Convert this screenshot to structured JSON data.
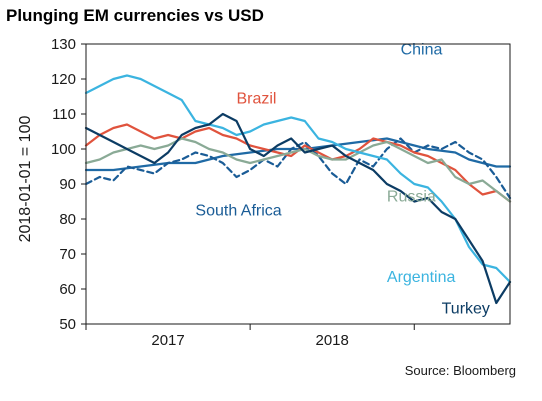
{
  "chart_data": {
    "type": "line",
    "title": "Plunging EM currencies vs USD",
    "ylabel": "2018-01-01 = 100",
    "xlabel": "",
    "ylim": [
      50,
      130
    ],
    "yticks": [
      50,
      60,
      70,
      80,
      90,
      100,
      110,
      120,
      130
    ],
    "xlim": [
      "2016-01",
      "2018-08"
    ],
    "xticks": [
      {
        "date": "2016-01",
        "label": ""
      },
      {
        "date": "2017-01",
        "label": ""
      },
      {
        "date": "2018-01",
        "label": ""
      }
    ],
    "xperiods": [
      {
        "label": "2017",
        "from": "2016-01",
        "to": "2017-01"
      },
      {
        "label": "2018",
        "from": "2017-01",
        "to": "2018-01"
      }
    ],
    "source": "Source: Bloomberg",
    "grid": false,
    "legend": "inline labels",
    "series": [
      {
        "name": "China",
        "color": "#1f6aa5",
        "dash": false,
        "label_at": [
          "2017-12",
          127
        ],
        "x": [
          "2016-01",
          "2016-03",
          "2016-05",
          "2016-07",
          "2016-09",
          "2016-11",
          "2017-01",
          "2017-03",
          "2017-05",
          "2017-07",
          "2017-09",
          "2017-11",
          "2018-01",
          "2018-02",
          "2018-04",
          "2018-05",
          "2018-06",
          "2018-07",
          "2018-08"
        ],
        "y": [
          94,
          94,
          95,
          96,
          96,
          98,
          99,
          100,
          100,
          101,
          102,
          103,
          101,
          100,
          99,
          97,
          96,
          95,
          95
        ]
      },
      {
        "name": "South Africa",
        "color": "#1a5c96",
        "dash": true,
        "label_at": [
          "2016-09",
          81
        ],
        "x": [
          "2016-01",
          "2016-02",
          "2016-03",
          "2016-04",
          "2016-05",
          "2016-06",
          "2016-07",
          "2016-08",
          "2016-09",
          "2016-10",
          "2016-11",
          "2016-12",
          "2017-01",
          "2017-02",
          "2017-03",
          "2017-04",
          "2017-05",
          "2017-06",
          "2017-07",
          "2017-08",
          "2017-09",
          "2017-10",
          "2017-11",
          "2017-12",
          "2018-01",
          "2018-02",
          "2018-03",
          "2018-04",
          "2018-05",
          "2018-06",
          "2018-07",
          "2018-08"
        ],
        "y": [
          90,
          92,
          91,
          95,
          94,
          93,
          96,
          97,
          99,
          98,
          96,
          92,
          94,
          97,
          95,
          100,
          102,
          98,
          93,
          90,
          97,
          95,
          100,
          103,
          99,
          101,
          100,
          102,
          99,
          97,
          92,
          86
        ]
      },
      {
        "name": "Brazil",
        "color": "#e0533d",
        "dash": false,
        "label_at": [
          "2016-12",
          113
        ],
        "x": [
          "2016-01",
          "2016-02",
          "2016-03",
          "2016-04",
          "2016-05",
          "2016-06",
          "2016-07",
          "2016-08",
          "2016-09",
          "2016-10",
          "2016-11",
          "2016-12",
          "2017-01",
          "2017-02",
          "2017-03",
          "2017-04",
          "2017-05",
          "2017-06",
          "2017-07",
          "2017-08",
          "2017-09",
          "2017-10",
          "2017-11",
          "2017-12",
          "2018-01",
          "2018-02",
          "2018-03",
          "2018-04",
          "2018-05",
          "2018-06",
          "2018-07",
          "2018-08"
        ],
        "y": [
          101,
          104,
          106,
          107,
          105,
          103,
          104,
          103,
          105,
          106,
          104,
          103,
          101,
          100,
          99,
          98,
          101,
          99,
          97,
          98,
          100,
          103,
          102,
          101,
          99,
          98,
          96,
          94,
          90,
          87,
          88,
          85
        ]
      },
      {
        "name": "Russia",
        "color": "#8aaa96",
        "dash": false,
        "label_at": [
          "2017-11",
          85
        ],
        "x": [
          "2016-01",
          "2016-02",
          "2016-03",
          "2016-04",
          "2016-05",
          "2016-06",
          "2016-07",
          "2016-08",
          "2016-09",
          "2016-10",
          "2016-11",
          "2016-12",
          "2017-01",
          "2017-02",
          "2017-03",
          "2017-04",
          "2017-05",
          "2017-06",
          "2017-07",
          "2017-08",
          "2017-09",
          "2017-10",
          "2017-11",
          "2017-12",
          "2018-01",
          "2018-02",
          "2018-03",
          "2018-04",
          "2018-05",
          "2018-06",
          "2018-07",
          "2018-08"
        ],
        "y": [
          96,
          97,
          99,
          100,
          101,
          100,
          101,
          103,
          102,
          100,
          99,
          97,
          96,
          97,
          98,
          99,
          100,
          98,
          97,
          97,
          99,
          101,
          102,
          100,
          98,
          96,
          97,
          92,
          90,
          91,
          88,
          85
        ]
      },
      {
        "name": "Argentina",
        "color": "#3bb4e0",
        "dash": false,
        "label_at": [
          "2017-11",
          62
        ],
        "x": [
          "2016-01",
          "2016-02",
          "2016-03",
          "2016-04",
          "2016-05",
          "2016-06",
          "2016-07",
          "2016-08",
          "2016-09",
          "2016-10",
          "2016-11",
          "2016-12",
          "2017-01",
          "2017-02",
          "2017-03",
          "2017-04",
          "2017-05",
          "2017-06",
          "2017-07",
          "2017-08",
          "2017-09",
          "2017-10",
          "2017-11",
          "2017-12",
          "2018-01",
          "2018-02",
          "2018-03",
          "2018-04",
          "2018-05",
          "2018-06",
          "2018-07",
          "2018-08"
        ],
        "y": [
          116,
          118,
          120,
          121,
          120,
          118,
          116,
          114,
          108,
          107,
          106,
          104,
          105,
          107,
          108,
          109,
          108,
          103,
          102,
          100,
          99,
          98,
          97,
          93,
          90,
          89,
          85,
          80,
          72,
          67,
          66,
          62
        ]
      },
      {
        "name": "Turkey",
        "color": "#0c3c64",
        "dash": false,
        "label_at": [
          "2018-03",
          53
        ],
        "x": [
          "2016-01",
          "2016-02",
          "2016-03",
          "2016-04",
          "2016-05",
          "2016-06",
          "2016-07",
          "2016-08",
          "2016-09",
          "2016-10",
          "2016-11",
          "2016-12",
          "2017-01",
          "2017-02",
          "2017-03",
          "2017-04",
          "2017-05",
          "2017-06",
          "2017-07",
          "2017-08",
          "2017-09",
          "2017-10",
          "2017-11",
          "2017-12",
          "2018-01",
          "2018-02",
          "2018-03",
          "2018-04",
          "2018-05",
          "2018-06",
          "2018-07",
          "2018-08"
        ],
        "y": [
          106,
          104,
          102,
          100,
          98,
          96,
          99,
          104,
          106,
          107,
          110,
          108,
          100,
          98,
          101,
          103,
          99,
          100,
          101,
          98,
          96,
          94,
          90,
          88,
          85,
          86,
          82,
          80,
          74,
          68,
          56,
          62
        ]
      }
    ]
  }
}
